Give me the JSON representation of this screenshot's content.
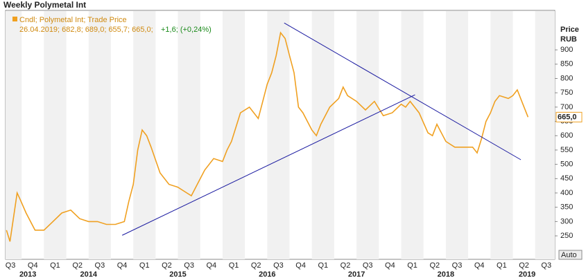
{
  "chart_data": {
    "type": "line",
    "title": "Weekly Polymetal Int",
    "legend_label": "Cndl; Polymetal Int; Trade Price",
    "info": "26.04.2019; 682,8; 689,0; 655,7; 665,0;",
    "change": "+1,6; (+0,24%)",
    "y_axis_label": "Price",
    "y_axis_unit": "RUB",
    "scale_mode": "Auto",
    "last_price": {
      "value": 665,
      "label": "665,0"
    },
    "x": [
      2013.58,
      2013.62,
      2013.7,
      2013.73,
      2013.8,
      2013.9,
      2014.0,
      2014.1,
      2014.2,
      2014.3,
      2014.4,
      2014.5,
      2014.6,
      2014.7,
      2014.8,
      2014.9,
      2014.95,
      2015.0,
      2015.05,
      2015.1,
      2015.15,
      2015.2,
      2015.3,
      2015.4,
      2015.5,
      2015.6,
      2015.65,
      2015.7,
      2015.8,
      2015.9,
      2016.0,
      2016.05,
      2016.1,
      2016.2,
      2016.3,
      2016.4,
      2016.45,
      2016.5,
      2016.55,
      2016.6,
      2016.65,
      2016.7,
      2016.75,
      2016.8,
      2016.85,
      2016.9,
      2017.0,
      2017.05,
      2017.1,
      2017.2,
      2017.3,
      2017.35,
      2017.4,
      2017.5,
      2017.6,
      2017.7,
      2017.8,
      2017.9,
      2018.0,
      2018.05,
      2018.1,
      2018.2,
      2018.3,
      2018.35,
      2018.4,
      2018.5,
      2018.6,
      2018.7,
      2018.8,
      2018.85,
      2018.9,
      2018.95,
      2019.0,
      2019.05,
      2019.1,
      2019.2,
      2019.25,
      2019.3,
      2019.35,
      2019.42
    ],
    "series": [
      {
        "name": "Polymetal Int",
        "color": "#f0a020",
        "values": [
          270,
          230,
          400,
          380,
          330,
          270,
          270,
          300,
          330,
          340,
          310,
          300,
          300,
          290,
          290,
          300,
          370,
          430,
          550,
          620,
          600,
          560,
          470,
          430,
          420,
          400,
          390,
          420,
          480,
          520,
          510,
          550,
          580,
          680,
          700,
          660,
          720,
          780,
          820,
          880,
          960,
          940,
          880,
          820,
          700,
          680,
          620,
          600,
          640,
          700,
          730,
          770,
          740,
          720,
          690,
          720,
          670,
          680,
          710,
          700,
          720,
          680,
          610,
          600,
          640,
          580,
          560,
          560,
          560,
          540,
          590,
          650,
          680,
          720,
          740,
          730,
          740,
          760,
          720,
          665
        ]
      }
    ],
    "trendlines": [
      {
        "color": "#1a1aa0",
        "x": [
          2014.876,
          2018.155
        ],
        "values": [
          252,
          743
        ]
      },
      {
        "color": "#1a1aa0",
        "x": [
          2016.69,
          2019.34
        ],
        "values": [
          994,
          516
        ]
      }
    ],
    "xlim": [
      2013.57,
      2019.72
    ],
    "ylim": [
      168,
      1038
    ],
    "yticks": [
      250,
      300,
      350,
      400,
      450,
      500,
      550,
      600,
      650,
      700,
      750,
      800,
      850,
      900
    ],
    "xticks": [
      {
        "value": 2013.625,
        "label": "Q3"
      },
      {
        "value": 2013.875,
        "label": "Q4"
      },
      {
        "value": 2014.125,
        "label": "Q1"
      },
      {
        "value": 2014.375,
        "label": "Q2"
      },
      {
        "value": 2014.625,
        "label": "Q3"
      },
      {
        "value": 2014.875,
        "label": "Q4"
      },
      {
        "value": 2015.125,
        "label": "Q1"
      },
      {
        "value": 2015.375,
        "label": "Q2"
      },
      {
        "value": 2015.625,
        "label": "Q3"
      },
      {
        "value": 2015.875,
        "label": "Q4"
      },
      {
        "value": 2016.125,
        "label": "Q1"
      },
      {
        "value": 2016.375,
        "label": "Q2"
      },
      {
        "value": 2016.625,
        "label": "Q3"
      },
      {
        "value": 2016.875,
        "label": "Q4"
      },
      {
        "value": 2017.125,
        "label": "Q1"
      },
      {
        "value": 2017.375,
        "label": "Q2"
      },
      {
        "value": 2017.625,
        "label": "Q3"
      },
      {
        "value": 2017.875,
        "label": "Q4"
      },
      {
        "value": 2018.125,
        "label": "Q1"
      },
      {
        "value": 2018.375,
        "label": "Q2"
      },
      {
        "value": 2018.625,
        "label": "Q3"
      },
      {
        "value": 2018.875,
        "label": "Q4"
      },
      {
        "value": 2019.125,
        "label": "Q1"
      },
      {
        "value": 2019.375,
        "label": "Q2"
      },
      {
        "value": 2019.625,
        "label": "Q3"
      }
    ],
    "year_ticks": [
      {
        "value": 2013.82,
        "label": "2013"
      },
      {
        "value": 2014.5,
        "label": "2014"
      },
      {
        "value": 2015.5,
        "label": "2015"
      },
      {
        "value": 2016.5,
        "label": "2016"
      },
      {
        "value": 2017.5,
        "label": "2017"
      },
      {
        "value": 2018.5,
        "label": "2018"
      },
      {
        "value": 2019.41,
        "label": "2019"
      }
    ]
  }
}
